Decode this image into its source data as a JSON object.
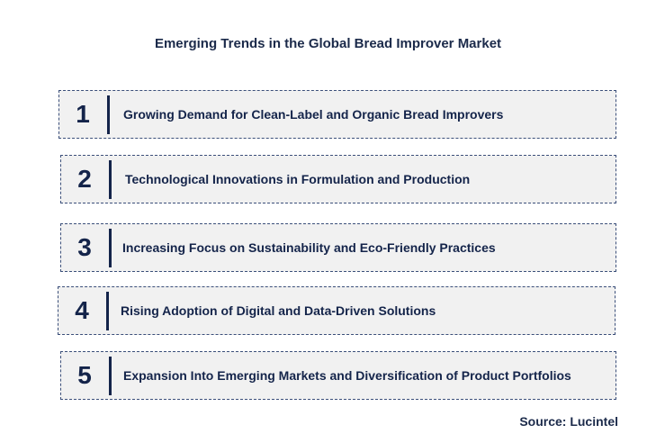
{
  "title": "Emerging Trends in the Global Bread Improver Market",
  "trends": [
    {
      "number": "1",
      "label": "Growing Demand for Clean-Label and Organic Bread Improvers"
    },
    {
      "number": "2",
      "label": "Technological Innovations in Formulation and Production"
    },
    {
      "number": "3",
      "label": "Increasing Focus on Sustainability and Eco-Friendly Practices"
    },
    {
      "number": "4",
      "label": "Rising Adoption of Digital and Data-Driven Solutions"
    },
    {
      "number": "5",
      "label": "Expansion Into Emerging Markets and Diversification of Product Portfolios"
    }
  ],
  "source": "Source: Lucintel",
  "colors": {
    "text": "#14244a",
    "box_background": "#f1f1f1",
    "box_border": "#3b4f7a"
  }
}
